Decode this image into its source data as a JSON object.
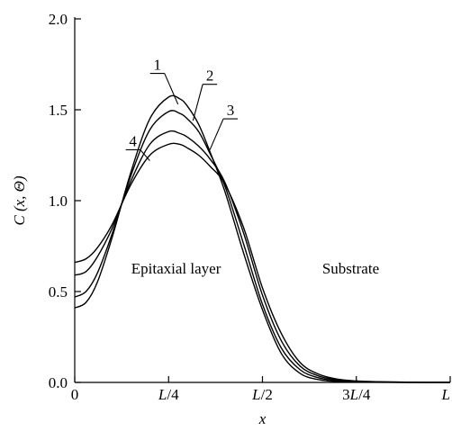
{
  "chart_data": {
    "type": "line",
    "title": "",
    "xlabel": "x",
    "ylabel": "C (x, Θ)",
    "xlim": [
      0,
      1
    ],
    "ylim": [
      0,
      2
    ],
    "x_ticks": [
      {
        "value": 0,
        "label": "0"
      },
      {
        "value": 0.25,
        "label": "L/4"
      },
      {
        "value": 0.5,
        "label": "L/2"
      },
      {
        "value": 0.75,
        "label": "3L/4"
      },
      {
        "value": 1.0,
        "label": "L"
      }
    ],
    "y_ticks": [
      {
        "value": 0.0,
        "label": "0.0"
      },
      {
        "value": 0.5,
        "label": "0.5"
      },
      {
        "value": 1.0,
        "label": "1.0"
      },
      {
        "value": 1.5,
        "label": "1.5"
      },
      {
        "value": 2.0,
        "label": "2.0"
      }
    ],
    "grid": false,
    "region_labels": [
      {
        "text": "Epitaxial layer",
        "x": 0.27,
        "y": 0.6
      },
      {
        "text": "Substrate",
        "x": 0.735,
        "y": 0.6
      }
    ],
    "series": [
      {
        "name": "1",
        "label_at": {
          "x": 0.22,
          "y": 1.72
        },
        "leader_to": {
          "x": 0.275,
          "y": 1.53
        },
        "x": [
          0,
          0.03,
          0.06,
          0.1,
          0.15,
          0.2,
          0.25,
          0.28,
          0.3,
          0.33,
          0.36,
          0.4,
          0.45,
          0.5,
          0.55,
          0.6,
          0.65,
          0.7,
          0.75,
          0.8,
          0.9,
          1.0
        ],
        "y": [
          0.41,
          0.44,
          0.55,
          0.8,
          1.16,
          1.45,
          1.57,
          1.56,
          1.52,
          1.42,
          1.27,
          1.05,
          0.71,
          0.4,
          0.16,
          0.05,
          0.015,
          0.005,
          0.002,
          0.001,
          0.0,
          0.0
        ]
      },
      {
        "name": "2",
        "label_at": {
          "x": 0.36,
          "y": 1.66
        },
        "leader_to": {
          "x": 0.315,
          "y": 1.44
        },
        "x": [
          0,
          0.03,
          0.06,
          0.1,
          0.15,
          0.2,
          0.25,
          0.28,
          0.3,
          0.33,
          0.36,
          0.4,
          0.45,
          0.5,
          0.55,
          0.6,
          0.65,
          0.7,
          0.75,
          0.8,
          0.9,
          1.0
        ],
        "y": [
          0.47,
          0.5,
          0.6,
          0.82,
          1.14,
          1.39,
          1.49,
          1.48,
          1.45,
          1.38,
          1.26,
          1.08,
          0.76,
          0.43,
          0.19,
          0.07,
          0.025,
          0.01,
          0.004,
          0.002,
          0.0,
          0.0
        ]
      },
      {
        "name": "3",
        "label_at": {
          "x": 0.415,
          "y": 1.47
        },
        "leader_to": {
          "x": 0.36,
          "y": 1.28
        },
        "x": [
          0,
          0.03,
          0.06,
          0.1,
          0.15,
          0.2,
          0.25,
          0.28,
          0.3,
          0.33,
          0.36,
          0.4,
          0.45,
          0.5,
          0.55,
          0.6,
          0.65,
          0.7,
          0.75,
          0.8,
          0.9,
          1.0
        ],
        "y": [
          0.59,
          0.61,
          0.69,
          0.85,
          1.11,
          1.31,
          1.38,
          1.37,
          1.35,
          1.3,
          1.23,
          1.1,
          0.82,
          0.48,
          0.23,
          0.09,
          0.035,
          0.014,
          0.006,
          0.003,
          0.001,
          0.0
        ]
      },
      {
        "name": "4",
        "label_at": {
          "x": 0.155,
          "y": 1.3
        },
        "leader_to": {
          "x": 0.2,
          "y": 1.22
        },
        "x": [
          0,
          0.03,
          0.06,
          0.1,
          0.15,
          0.2,
          0.25,
          0.28,
          0.3,
          0.33,
          0.36,
          0.4,
          0.45,
          0.5,
          0.55,
          0.6,
          0.65,
          0.7,
          0.75,
          0.8,
          0.9,
          1.0
        ],
        "y": [
          0.66,
          0.68,
          0.74,
          0.87,
          1.09,
          1.25,
          1.31,
          1.31,
          1.29,
          1.25,
          1.19,
          1.09,
          0.85,
          0.52,
          0.27,
          0.11,
          0.045,
          0.018,
          0.008,
          0.004,
          0.001,
          0.0
        ]
      }
    ]
  }
}
